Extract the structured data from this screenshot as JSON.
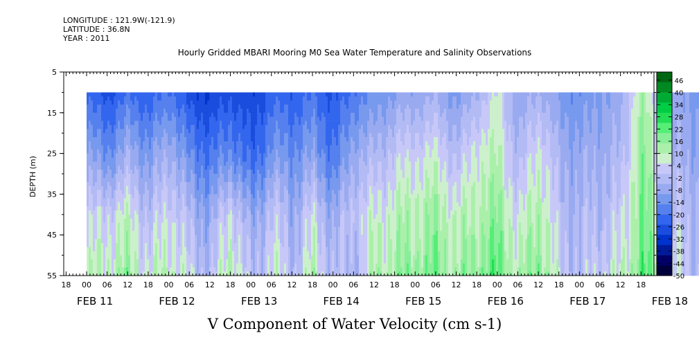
{
  "header": {
    "longitude": "LONGITUDE : 121.9W(-121.9)",
    "latitude": "LATITUDE : 36.8N",
    "year": "YEAR : 2011"
  },
  "chart_data": {
    "type": "heatmap",
    "title": "Hourly Gridded MBARI Mooring M0 Sea Water Temperature and Salinity Observations",
    "xlabel": "V Component of Water Velocity (cm s-1)",
    "ylabel": "DEPTH (m)",
    "ylim": [
      55,
      5
    ],
    "y_ticks": [
      5,
      15,
      25,
      35,
      45,
      55
    ],
    "data_depth_range": [
      10,
      55
    ],
    "hour_ticks": [
      "18",
      "00",
      "06",
      "12",
      "18",
      "00",
      "06",
      "12",
      "18",
      "00",
      "06",
      "12",
      "18",
      "00",
      "06",
      "12",
      "18",
      "00",
      "06",
      "12",
      "18",
      "00",
      "06",
      "12",
      "18",
      "00",
      "06",
      "12",
      "18"
    ],
    "date_labels": [
      "FEB 11",
      "FEB 12",
      "FEB 13",
      "FEB 14",
      "FEB 15",
      "FEB 16",
      "FEB 17",
      "FEB 18"
    ],
    "colorbar": {
      "ticks": [
        46,
        40,
        34,
        28,
        22,
        16,
        10,
        4,
        -2,
        -8,
        -14,
        -20,
        -26,
        -32,
        -38,
        -44,
        -50
      ],
      "range": [
        -50,
        50
      ],
      "colors": [
        "#00003a",
        "#000066",
        "#001a99",
        "#0033cc",
        "#1a4ddd",
        "#3366ee",
        "#5580ee",
        "#7799ee",
        "#99aaf0",
        "#b3bbf5",
        "#c8c8f8",
        "#ccf0cc",
        "#aaf0aa",
        "#88ee99",
        "#55ee77",
        "#22dd55",
        "#00cc44",
        "#00aa33",
        "#008822",
        "#006611"
      ]
    },
    "velocity_profiles": {
      "times_hours_from_feb11_00": [
        0,
        6,
        12,
        18,
        24,
        30,
        36,
        42,
        48,
        54,
        60,
        66,
        72,
        78,
        84,
        90,
        96,
        102,
        108,
        114,
        120,
        126,
        132,
        138,
        144,
        150,
        156,
        162,
        168,
        174,
        180,
        186
      ],
      "depth_levels_m": [
        10,
        25,
        40,
        55
      ],
      "values_cm_s": [
        [
          -22,
          -10,
          2,
          8
        ],
        [
          -26,
          -14,
          4,
          10
        ],
        [
          -20,
          -6,
          8,
          14
        ],
        [
          -24,
          -12,
          -2,
          6
        ],
        [
          -18,
          -4,
          6,
          12
        ],
        [
          -28,
          -16,
          -4,
          2
        ],
        [
          -30,
          -20,
          -8,
          -2
        ],
        [
          -26,
          -14,
          6,
          14
        ],
        [
          -30,
          -24,
          -10,
          -4
        ],
        [
          -22,
          -12,
          2,
          8
        ],
        [
          -24,
          -14,
          -6,
          -2
        ],
        [
          -20,
          -10,
          4,
          10
        ],
        [
          -26,
          -20,
          -8,
          -2
        ],
        [
          -18,
          -6,
          2,
          -4
        ],
        [
          -14,
          -4,
          6,
          12
        ],
        [
          -10,
          2,
          10,
          14
        ],
        [
          -8,
          4,
          12,
          16
        ],
        [
          -6,
          6,
          14,
          18
        ],
        [
          -12,
          -2,
          8,
          12
        ],
        [
          -4,
          8,
          12,
          18
        ],
        [
          6,
          10,
          16,
          22
        ],
        [
          -10,
          -4,
          4,
          10
        ],
        [
          -4,
          8,
          14,
          20
        ],
        [
          -12,
          -6,
          -2,
          2
        ],
        [
          -14,
          -8,
          -4,
          -2
        ],
        [
          -10,
          -6,
          -2,
          4
        ],
        [
          -8,
          -4,
          2,
          6
        ],
        [
          14,
          18,
          20,
          22
        ],
        [
          -6,
          -2,
          4,
          10
        ],
        [
          -10,
          -6,
          -2,
          2
        ],
        [
          -12,
          -8,
          -4,
          -2
        ],
        [
          -14,
          -10,
          -6,
          -4
        ]
      ]
    }
  }
}
